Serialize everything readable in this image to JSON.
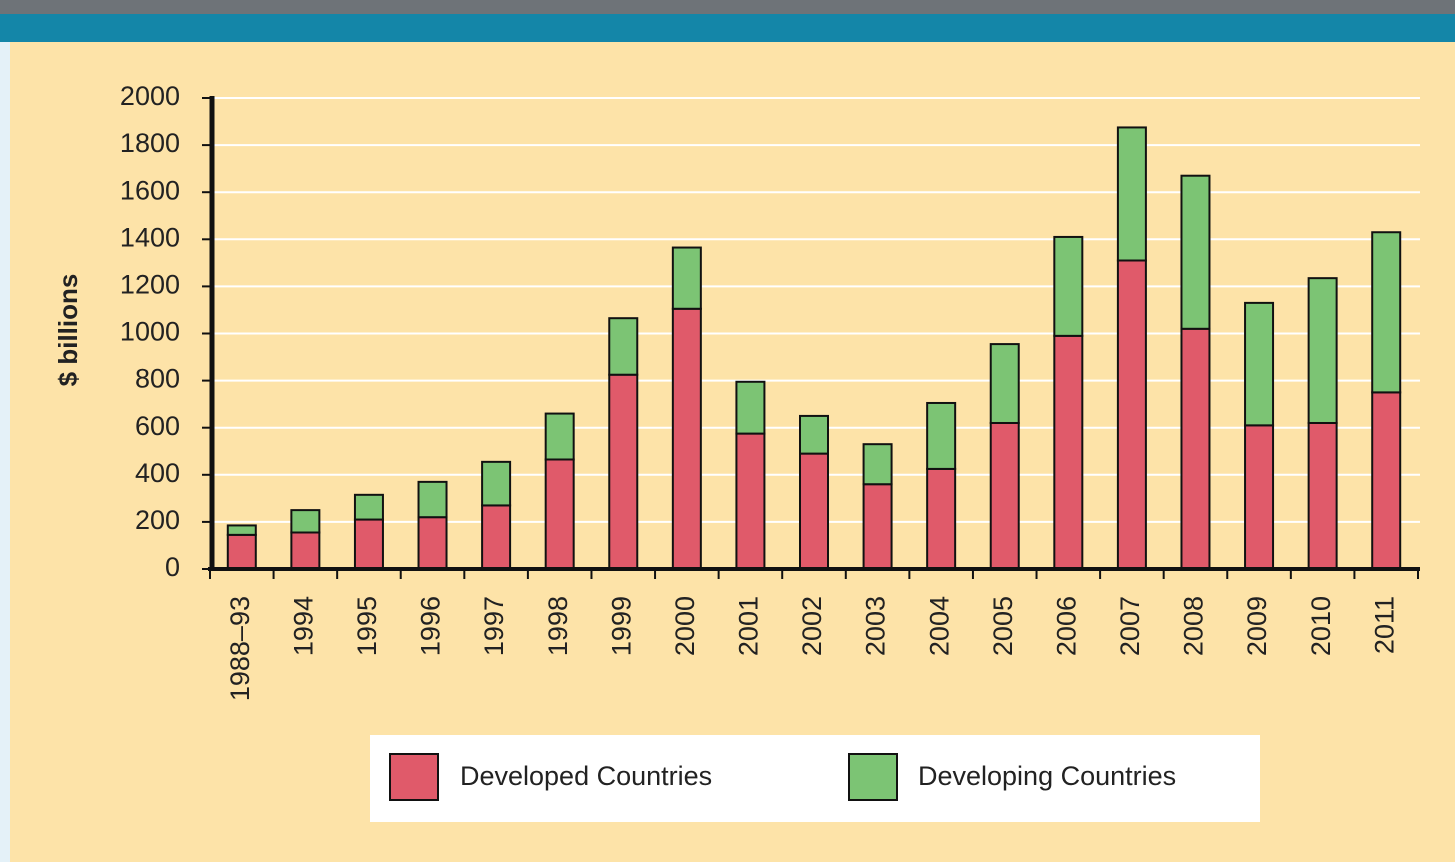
{
  "chart_data": {
    "type": "stacked-bar",
    "y_label": "$ billions",
    "categories": [
      "1988–93",
      "1994",
      "1995",
      "1996",
      "1997",
      "1998",
      "1999",
      "2000",
      "2001",
      "2002",
      "2003",
      "2004",
      "2005",
      "2006",
      "2007",
      "2008",
      "2009",
      "2010",
      "2011"
    ],
    "series": [
      {
        "name": "Developed Countries",
        "color": "#e05a6a",
        "values": [
          145,
          155,
          210,
          220,
          270,
          465,
          825,
          1105,
          575,
          490,
          360,
          425,
          620,
          990,
          1310,
          1020,
          610,
          620,
          750
        ]
      },
      {
        "name": "Developing Countries",
        "color": "#7cc474",
        "values": [
          40,
          95,
          105,
          150,
          185,
          195,
          240,
          260,
          220,
          160,
          170,
          280,
          335,
          420,
          565,
          650,
          520,
          615,
          680
        ]
      }
    ],
    "ylim": [
      0,
      2000
    ],
    "yticks": [
      0,
      200,
      400,
      600,
      800,
      1000,
      1200,
      1400,
      1600,
      1800,
      2000
    ],
    "grid": true,
    "legend": "bottom"
  }
}
